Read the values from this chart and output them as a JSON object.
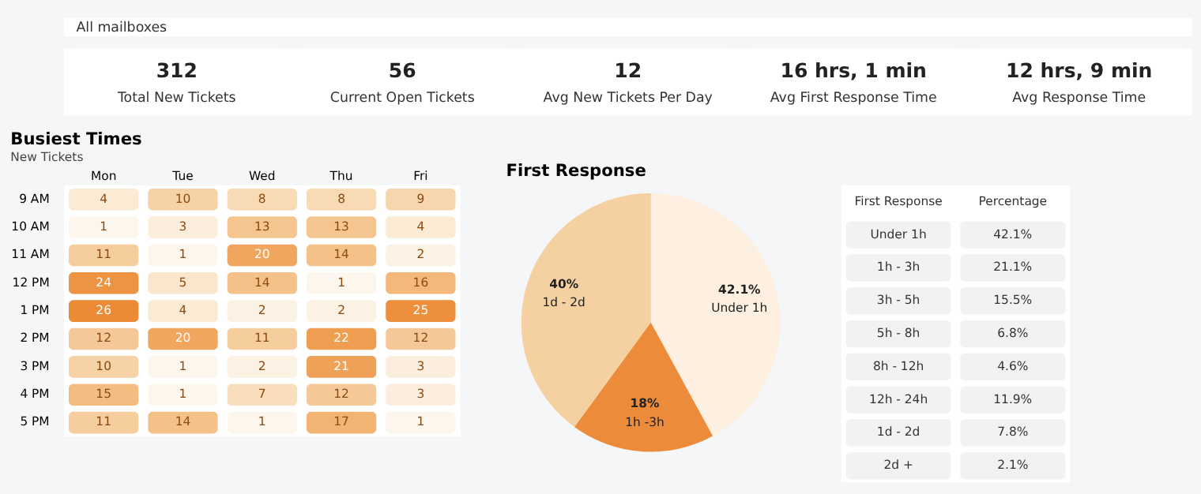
{
  "chart_data": [
    {
      "type": "other",
      "annotations": [
        "All mailboxes"
      ],
      "categories": [
        "Total New Tickets",
        "Current Open Tickets",
        "Avg New Tickets Per Day",
        "Avg First Response Time",
        "Avg Response Time"
      ],
      "value_labels": [
        "312",
        "56",
        "12",
        "16 hrs, 1 min",
        "12 hrs, 9 min"
      ]
    },
    {
      "type": "heatmap",
      "title": "Busiest Times",
      "annotations": [
        "New Tickets"
      ],
      "categories": [
        "Mon",
        "Tue",
        "Wed",
        "Thu",
        "Fri"
      ],
      "y_categories": [
        "9 AM",
        "10 AM",
        "11 AM",
        "12 PM",
        "1 PM",
        "2 PM",
        "3 PM",
        "4 PM",
        "5 PM"
      ],
      "cells": [
        [
          4,
          10,
          8,
          8,
          9
        ],
        [
          1,
          3,
          13,
          13,
          4
        ],
        [
          11,
          1,
          20,
          14,
          2
        ],
        [
          24,
          5,
          14,
          1,
          16
        ],
        [
          26,
          4,
          2,
          2,
          25
        ],
        [
          12,
          20,
          11,
          22,
          12
        ],
        [
          10,
          1,
          2,
          21,
          3
        ],
        [
          15,
          1,
          7,
          12,
          3
        ],
        [
          11,
          14,
          1,
          17,
          1
        ]
      ],
      "colors": [
        "#fdf6ec",
        "#ec8a35"
      ],
      "data_labels": true
    },
    {
      "type": "pie",
      "title": "First Response",
      "categories": [
        "Under 1h",
        "1h -3h",
        "1d - 2d"
      ],
      "values": [
        42.1,
        18,
        40
      ],
      "value_labels": [
        "42.1%",
        "18%",
        "40%"
      ],
      "colors": [
        "#fdf0e1",
        "#ec8c3a",
        "#f5d1a2"
      ]
    },
    {
      "type": "other",
      "annotations": [
        "First Response",
        "Percentage"
      ],
      "categories": [
        "Under 1h",
        "1h - 3h",
        "3h - 5h",
        "5h - 8h",
        "8h - 12h",
        "12h - 24h",
        "1d - 2d",
        "2d +"
      ],
      "value_labels": [
        "42.1%",
        "21.1%",
        "15.5%",
        "6.8%",
        "4.6%",
        "11.9%",
        "7.8%",
        "2.1%"
      ]
    }
  ]
}
